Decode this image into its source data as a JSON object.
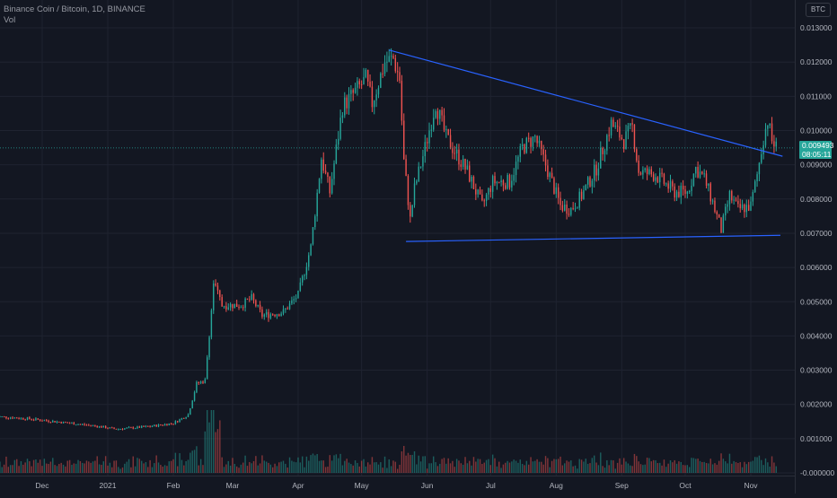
{
  "legend": {
    "symbol_line": "Binance Coin / Bitcoin, 1D, BINANCE",
    "vol_label": "Vol"
  },
  "currency_badge": "BTC",
  "last_price": {
    "price": "0.009493",
    "countdown": "08:05:11"
  },
  "colors": {
    "background": "#131722",
    "up": "#26a69a",
    "down": "#ef5350",
    "trendline": "#2962ff",
    "grid": "#1f2330",
    "axis_text": "#b2b5be"
  },
  "chart_data": {
    "type": "candlestick",
    "title": "Binance Coin / Bitcoin, 1D, BINANCE",
    "y_axis": {
      "ticks": [
        "0.013000",
        "0.012000",
        "0.011000",
        "0.010000",
        "0.009000",
        "0.008000",
        "0.007000",
        "0.006000",
        "0.005000",
        "0.004000",
        "0.003000",
        "0.002000",
        "0.001000",
        "-0.000000"
      ],
      "range": [
        -0.0001,
        0.0134
      ],
      "position": "right"
    },
    "x_axis": {
      "ticks": [
        "Dec",
        "2021",
        "Feb",
        "Mar",
        "Apr",
        "May",
        "Jun",
        "Jul",
        "Aug",
        "Sep",
        "Oct",
        "Nov"
      ],
      "tick_dates": [
        "2020-12-01",
        "2021-01-01",
        "2021-02-01",
        "2021-03-01",
        "2021-04-01",
        "2021-05-01",
        "2021-06-01",
        "2021-07-01",
        "2021-08-01",
        "2021-09-01",
        "2021-10-01",
        "2021-11-01"
      ],
      "range": [
        "2020-11-09",
        "2021-11-16"
      ]
    },
    "grid": true,
    "price_keypoints": [
      [
        "2020-11-09",
        0.00165
      ],
      [
        "2020-11-25",
        0.00158
      ],
      [
        "2020-12-10",
        0.00148
      ],
      [
        "2020-12-25",
        0.00138
      ],
      [
        "2021-01-05",
        0.00128
      ],
      [
        "2021-01-20",
        0.00135
      ],
      [
        "2021-02-01",
        0.00145
      ],
      [
        "2021-02-08",
        0.0017
      ],
      [
        "2021-02-12",
        0.0026
      ],
      [
        "2021-02-16",
        0.0027
      ],
      [
        "2021-02-19",
        0.00475
      ],
      [
        "2021-02-20",
        0.00555
      ],
      [
        "2021-02-24",
        0.0049
      ],
      [
        "2021-03-05",
        0.0049
      ],
      [
        "2021-03-10",
        0.0051
      ],
      [
        "2021-03-15",
        0.0046
      ],
      [
        "2021-03-25",
        0.0047
      ],
      [
        "2021-04-01",
        0.0052
      ],
      [
        "2021-04-07",
        0.0066
      ],
      [
        "2021-04-12",
        0.0092
      ],
      [
        "2021-04-16",
        0.0082
      ],
      [
        "2021-04-22",
        0.0107
      ],
      [
        "2021-05-03",
        0.0115
      ],
      [
        "2021-05-06",
        0.0108
      ],
      [
        "2021-05-12",
        0.012
      ],
      [
        "2021-05-16",
        0.0121
      ],
      [
        "2021-05-19",
        0.0115
      ],
      [
        "2021-05-21",
        0.0091
      ],
      [
        "2021-05-24",
        0.0074
      ],
      [
        "2021-05-26",
        0.0083
      ],
      [
        "2021-05-31",
        0.0095
      ],
      [
        "2021-06-05",
        0.0108
      ],
      [
        "2021-06-10",
        0.0098
      ],
      [
        "2021-06-20",
        0.0088
      ],
      [
        "2021-06-27",
        0.0078
      ],
      [
        "2021-07-02",
        0.0085
      ],
      [
        "2021-07-10",
        0.0085
      ],
      [
        "2021-07-16",
        0.0095
      ],
      [
        "2021-07-22",
        0.0098
      ],
      [
        "2021-07-27",
        0.009
      ],
      [
        "2021-08-03",
        0.0078
      ],
      [
        "2021-08-08",
        0.0077
      ],
      [
        "2021-08-13",
        0.0081
      ],
      [
        "2021-08-20",
        0.0089
      ],
      [
        "2021-08-27",
        0.0102
      ],
      [
        "2021-09-02",
        0.0097
      ],
      [
        "2021-09-06",
        0.0101
      ],
      [
        "2021-09-09",
        0.0088
      ],
      [
        "2021-09-17",
        0.0087
      ],
      [
        "2021-09-26",
        0.0082
      ],
      [
        "2021-10-02",
        0.0082
      ],
      [
        "2021-10-06",
        0.0089
      ],
      [
        "2021-10-10",
        0.0086
      ],
      [
        "2021-10-14",
        0.0079
      ],
      [
        "2021-10-18",
        0.0071
      ],
      [
        "2021-10-22",
        0.0081
      ],
      [
        "2021-10-26",
        0.0077
      ],
      [
        "2021-11-01",
        0.0078
      ],
      [
        "2021-11-04",
        0.0087
      ],
      [
        "2021-11-07",
        0.0098
      ],
      [
        "2021-11-09",
        0.0103
      ],
      [
        "2021-11-11",
        0.0097
      ],
      [
        "2021-11-13",
        0.0095
      ]
    ],
    "last_price_value": 0.009493,
    "trendlines": [
      {
        "from": [
          "2021-05-14",
          0.01235
        ],
        "to": [
          "2021-11-16",
          0.00925
        ]
      },
      {
        "from": [
          "2021-05-22",
          0.00676
        ],
        "to": [
          "2021-11-15",
          0.00694
        ]
      }
    ],
    "volume_pane": {
      "label": "Vol"
    }
  }
}
